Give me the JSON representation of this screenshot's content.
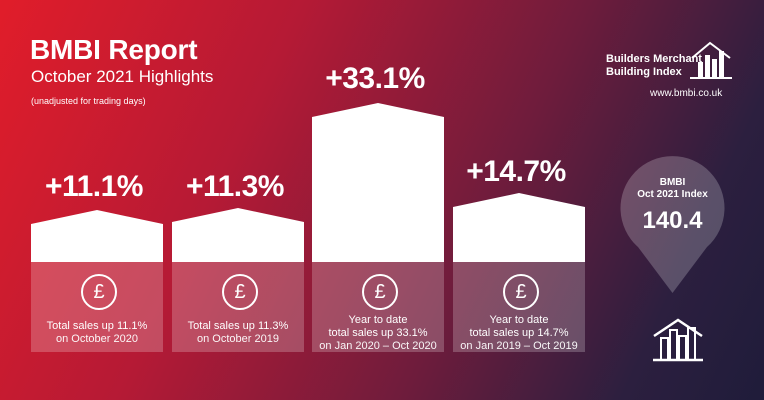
{
  "header": {
    "title": "BMBI Report",
    "subtitle": "October 2021 Highlights",
    "note": "(unadjusted for trading days)"
  },
  "logo": {
    "line1": "Builders Merchant",
    "line2": "Building Index",
    "website": "www.bmbi.co.uk"
  },
  "cards": [
    {
      "value": "+11.1%",
      "line1": "Total sales up 11.1%",
      "line2": "on October 2020",
      "line3": ""
    },
    {
      "value": "+11.3%",
      "line1": "Total sales up 11.3%",
      "line2": "on October 2019",
      "line3": ""
    },
    {
      "value": "+33.1%",
      "line1": "Year to date",
      "line2": "total sales up 33.1%",
      "line3": "on Jan 2020 – Oct 2020"
    },
    {
      "value": "+14.7%",
      "line1": "Year to date",
      "line2": "total sales up 14.7%",
      "line3": "on Jan 2019 – Oct 2019"
    }
  ],
  "pound_symbol": "£",
  "index_pin": {
    "label1": "BMBI",
    "label2": "Oct 2021 Index",
    "value": "140.4"
  },
  "colors": {
    "bg_start": "#e11d2a",
    "bg_end": "#1f1c3a",
    "bar": "#ffffff"
  }
}
